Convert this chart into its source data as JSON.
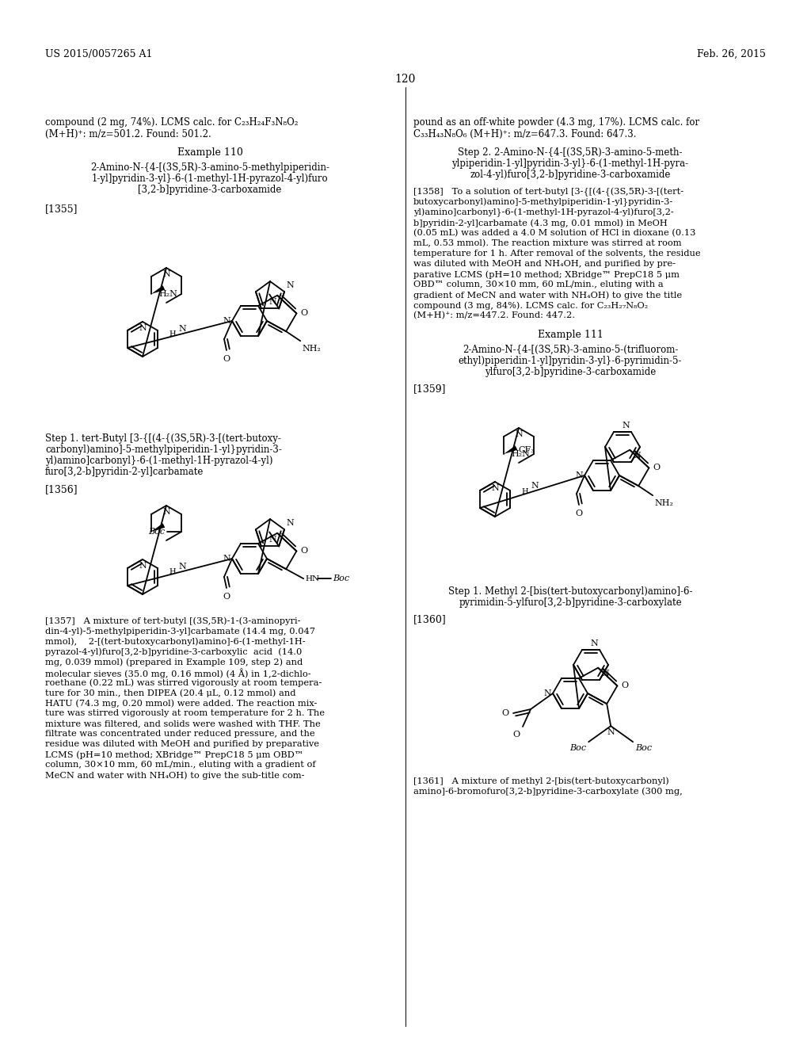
{
  "background_color": "#ffffff",
  "header_left": "US 2015/0057265 A1",
  "header_right": "Feb. 26, 2015",
  "page_number": "120"
}
